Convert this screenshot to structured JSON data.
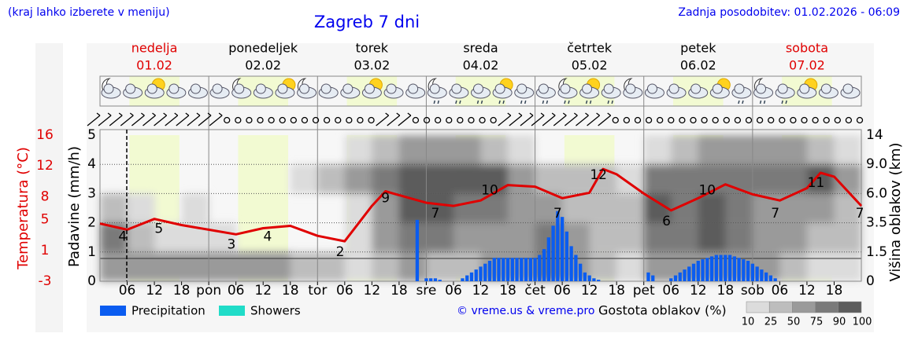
{
  "header": {
    "hint": "(kraj lahko izberete v meniju)",
    "title": "Zagreb 7 dni",
    "updated": "Zadnja posodobitev: 01.02.2026 - 06:09"
  },
  "chart_data": {
    "type": "meteogram",
    "xlim": [
      0,
      168
    ],
    "xticks": [
      {
        "value": 6,
        "label": "06"
      },
      {
        "value": 12,
        "label": "12"
      },
      {
        "value": 18,
        "label": "18"
      },
      {
        "value": 24,
        "label": "pon"
      },
      {
        "value": 30,
        "label": "06"
      },
      {
        "value": 36,
        "label": "12"
      },
      {
        "value": 42,
        "label": "18"
      },
      {
        "value": 48,
        "label": "tor"
      },
      {
        "value": 54,
        "label": "06"
      },
      {
        "value": 60,
        "label": "12"
      },
      {
        "value": 66,
        "label": "18"
      },
      {
        "value": 72,
        "label": "sre"
      },
      {
        "value": 78,
        "label": "06"
      },
      {
        "value": 84,
        "label": "12"
      },
      {
        "value": 90,
        "label": "18"
      },
      {
        "value": 96,
        "label": "čet"
      },
      {
        "value": 102,
        "label": "06"
      },
      {
        "value": 108,
        "label": "12"
      },
      {
        "value": 114,
        "label": "18"
      },
      {
        "value": 120,
        "label": "pet"
      },
      {
        "value": 126,
        "label": "06"
      },
      {
        "value": 132,
        "label": "12"
      },
      {
        "value": 138,
        "label": "18"
      },
      {
        "value": 144,
        "label": "sob"
      },
      {
        "value": 150,
        "label": "06"
      },
      {
        "value": 156,
        "label": "12"
      },
      {
        "value": 162,
        "label": "18"
      }
    ],
    "days": [
      {
        "name": "nedelja",
        "date": "01.02",
        "color": "#e00000"
      },
      {
        "name": "ponedeljek",
        "date": "02.02",
        "color": "#000000"
      },
      {
        "name": "torek",
        "date": "03.02",
        "color": "#000000"
      },
      {
        "name": "sreda",
        "date": "04.02",
        "color": "#000000"
      },
      {
        "name": "četrtek",
        "date": "05.02",
        "color": "#000000"
      },
      {
        "name": "petek",
        "date": "06.02",
        "color": "#000000"
      },
      {
        "name": "sobota",
        "date": "07.02",
        "color": "#e00000"
      }
    ],
    "temp_axis": {
      "title": "Temperatura (°C)",
      "ylim": [
        -3,
        16
      ],
      "yticks": [
        -3,
        1,
        5,
        8,
        12,
        16
      ],
      "color": "#e00000"
    },
    "precip_axis": {
      "title": "Padavine (mm/h)",
      "ylim": [
        0,
        5
      ],
      "yticks": [
        0,
        1,
        2,
        3,
        4,
        5
      ]
    },
    "cloud_axis": {
      "title": "Višina oblakov (km)",
      "yticks": [
        0,
        1.5,
        3.5,
        {
          "value": 6,
          "label": "6.0"
        },
        {
          "value": 9,
          "label": "9.0"
        },
        14
      ]
    },
    "temperature": {
      "color": "#e00000",
      "x": [
        0,
        6,
        12,
        18,
        24,
        30,
        36,
        42,
        48,
        54,
        60,
        63,
        66,
        72,
        78,
        84,
        90,
        96,
        102,
        108,
        111,
        114,
        120,
        126,
        132,
        138,
        144,
        150,
        156,
        159,
        162,
        168
      ],
      "values": [
        4.5,
        3.7,
        5.1,
        4.3,
        3.7,
        3.1,
        3.9,
        4.2,
        2.9,
        2.2,
        6.8,
        8.7,
        8.2,
        7.2,
        6.8,
        7.5,
        9.5,
        9.3,
        7.8,
        8.5,
        11.6,
        10.9,
        8.4,
        6.2,
        7.8,
        9.6,
        8.3,
        7.5,
        9.1,
        11.1,
        10.6,
        6.8
      ]
    },
    "temperature_labels": {
      "x": [
        5,
        13,
        29,
        37,
        53,
        63,
        74,
        86,
        101,
        110,
        125,
        134,
        149,
        158,
        168
      ],
      "values": [
        4,
        5,
        3,
        4,
        2,
        9,
        7,
        10,
        7,
        12,
        6,
        10,
        7,
        11,
        7
      ]
    },
    "precipitation": {
      "x": [
        70,
        72,
        73,
        74,
        75,
        80,
        81,
        82,
        83,
        84,
        85,
        86,
        87,
        88,
        89,
        90,
        91,
        92,
        93,
        94,
        95,
        96,
        97,
        98,
        99,
        100,
        101,
        102,
        103,
        104,
        105,
        106,
        107,
        108,
        109,
        110,
        121,
        122,
        126,
        127,
        128,
        129,
        130,
        131,
        132,
        133,
        134,
        135,
        136,
        137,
        138,
        139,
        140,
        141,
        142,
        143,
        144,
        145,
        146,
        147,
        148,
        149
      ],
      "series": [
        {
          "name": "Precipitation",
          "color": "#0a5cf0",
          "values": [
            2.1,
            0.1,
            0.1,
            0.1,
            0.05,
            0.1,
            0.2,
            0.3,
            0.4,
            0.5,
            0.6,
            0.7,
            0.8,
            0.8,
            0.8,
            0.8,
            0.8,
            0.8,
            0.8,
            0.8,
            0.8,
            0.8,
            0.9,
            1.1,
            1.5,
            1.9,
            2.4,
            2.2,
            1.7,
            1.2,
            0.9,
            0.6,
            0.3,
            0.2,
            0.1,
            0.05,
            0.3,
            0.2,
            0.1,
            0.2,
            0.3,
            0.4,
            0.5,
            0.6,
            0.7,
            0.75,
            0.8,
            0.85,
            0.9,
            0.9,
            0.9,
            0.9,
            0.85,
            0.8,
            0.75,
            0.7,
            0.6,
            0.5,
            0.4,
            0.3,
            0.2,
            0.1
          ]
        },
        {
          "name": "Showers",
          "color": "#20dcc8",
          "values": [
            0,
            0,
            0,
            0,
            0,
            0,
            0,
            0,
            0,
            0,
            0,
            0,
            0,
            0,
            0,
            0,
            0,
            0,
            0,
            0,
            0,
            0,
            0,
            0,
            0,
            0,
            0,
            0,
            0,
            0,
            0,
            0,
            0,
            0,
            0,
            0,
            0,
            0,
            0,
            0,
            0,
            0,
            0,
            0,
            0,
            0,
            0,
            0,
            0,
            0,
            0,
            0,
            0,
            0,
            0,
            0,
            0,
            0,
            0,
            0,
            0,
            0
          ]
        }
      ]
    },
    "cloud_density": {
      "title": "Gostota oblakov (%)",
      "levels": [
        10,
        25,
        50,
        75,
        90,
        100
      ],
      "colors": [
        "#dcdcdc",
        "#bdbdbd",
        "#9a9a9a",
        "#7a7a7a",
        "#5c5c5c"
      ],
      "values": [
        [
          50,
          50,
          50,
          50,
          50,
          50,
          50,
          25,
          25,
          10,
          25,
          50,
          25,
          25,
          50,
          50,
          75,
          50,
          25,
          10,
          50,
          50,
          50,
          50,
          50,
          25,
          10,
          10
        ],
        [
          75,
          25,
          10,
          10,
          10,
          0,
          0,
          0,
          0,
          10,
          50,
          75,
          75,
          50,
          50,
          50,
          75,
          50,
          25,
          25,
          75,
          75,
          90,
          75,
          50,
          50,
          25,
          25
        ],
        [
          25,
          10,
          0,
          10,
          0,
          0,
          0,
          0,
          0,
          10,
          50,
          90,
          90,
          75,
          75,
          50,
          50,
          25,
          25,
          25,
          90,
          75,
          90,
          75,
          50,
          50,
          50,
          25
        ],
        [
          0,
          0,
          0,
          0,
          0,
          0,
          0,
          10,
          25,
          50,
          75,
          90,
          90,
          90,
          90,
          50,
          25,
          25,
          25,
          10,
          75,
          75,
          75,
          75,
          75,
          75,
          90,
          50
        ],
        [
          0,
          0,
          0,
          0,
          0,
          0,
          0,
          0,
          0,
          10,
          25,
          50,
          50,
          50,
          25,
          10,
          0,
          0,
          0,
          0,
          10,
          25,
          50,
          50,
          50,
          50,
          25,
          10
        ]
      ]
    },
    "credit": "© vreme.us & vreme.pro"
  }
}
